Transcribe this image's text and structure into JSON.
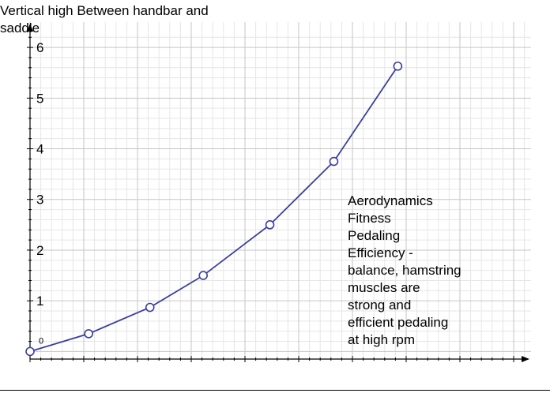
{
  "chart_data": {
    "type": "line",
    "title": "Vertical high Between handbar and saddle",
    "xlabel": "",
    "ylabel": "",
    "ylim": [
      -0.15,
      6.5
    ],
    "xlim": [
      -0.5,
      8.9
    ],
    "y_ticks": [
      "0",
      "1",
      "2",
      "3",
      "4",
      "5",
      "6"
    ],
    "grid": true,
    "series": [
      {
        "color": "#3a3fa0",
        "x": [
          -0.5,
          0.6,
          1.75,
          2.75,
          4.0,
          5.2,
          6.4
        ],
        "y": [
          0.0,
          0.35,
          0.87,
          1.5,
          2.5,
          3.75,
          5.63
        ]
      }
    ],
    "annotation_lines": [
      "Aerodynamics",
      "Fitness",
      "Pedaling",
      "Efficiency -",
      "balance, hamstring",
      "muscles are",
      "strong and",
      "efficient pedaling",
      "at high rpm"
    ]
  }
}
